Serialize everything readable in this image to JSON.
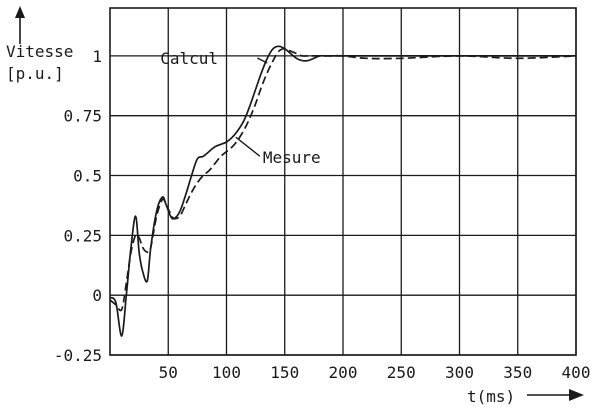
{
  "chart_data": {
    "type": "line",
    "ylabel_line1": "Vitesse",
    "ylabel_line2": "[p.u.]",
    "xlabel": "t(ms)",
    "xlim": [
      0,
      400
    ],
    "ylim": [
      -0.25,
      1.2
    ],
    "x_ticks": [
      50,
      100,
      150,
      200,
      250,
      300,
      350,
      400
    ],
    "x_tick_labels": [
      "50",
      "100",
      "150",
      "200",
      "250",
      "300",
      "350",
      "400"
    ],
    "y_ticks": [
      -0.25,
      0,
      0.25,
      0.5,
      0.75,
      1
    ],
    "y_tick_labels": [
      "-0.25",
      "0",
      "0.25",
      "0.5",
      "0.75",
      "1"
    ],
    "grid": true,
    "series": [
      {
        "name": "Calcul",
        "style": "solid",
        "x": [
          0,
          5,
          10,
          14,
          18,
          22,
          25,
          28,
          32,
          35,
          40,
          45,
          48,
          52,
          55,
          60,
          65,
          70,
          75,
          80,
          85,
          90,
          95,
          100,
          105,
          110,
          115,
          120,
          125,
          130,
          135,
          140,
          145,
          150,
          155,
          160,
          165,
          170,
          175,
          180,
          185,
          190,
          200,
          220,
          250,
          300,
          350,
          400
        ],
        "y": [
          -0.01,
          -0.03,
          -0.17,
          0.0,
          0.2,
          0.33,
          0.18,
          0.1,
          0.06,
          0.2,
          0.35,
          0.41,
          0.38,
          0.33,
          0.32,
          0.35,
          0.42,
          0.5,
          0.57,
          0.58,
          0.6,
          0.62,
          0.63,
          0.64,
          0.66,
          0.69,
          0.73,
          0.79,
          0.86,
          0.93,
          0.99,
          1.03,
          1.04,
          1.03,
          1.01,
          0.99,
          0.98,
          0.98,
          0.99,
          1.0,
          1.0,
          1.0,
          1.0,
          1.0,
          1.0,
          1.0,
          1.0,
          1.0
        ]
      },
      {
        "name": "Mesure",
        "style": "dashed",
        "x": [
          0,
          5,
          10,
          14,
          18,
          22,
          25,
          28,
          32,
          35,
          40,
          45,
          48,
          52,
          55,
          60,
          65,
          70,
          75,
          80,
          85,
          90,
          95,
          100,
          105,
          110,
          115,
          120,
          125,
          130,
          135,
          140,
          145,
          150,
          155,
          160,
          165,
          170,
          175,
          180,
          185,
          190,
          200,
          220,
          250,
          300,
          350,
          400
        ],
        "y": [
          -0.02,
          -0.04,
          -0.06,
          0.05,
          0.18,
          0.25,
          0.24,
          0.2,
          0.18,
          0.2,
          0.33,
          0.4,
          0.38,
          0.34,
          0.32,
          0.33,
          0.38,
          0.43,
          0.47,
          0.5,
          0.52,
          0.55,
          0.58,
          0.6,
          0.62,
          0.65,
          0.69,
          0.74,
          0.8,
          0.87,
          0.93,
          0.98,
          1.02,
          1.03,
          1.02,
          1.01,
          1.0,
          1.0,
          1.0,
          1.0,
          1.0,
          1.0,
          1.0,
          0.99,
          0.99,
          1.0,
          0.99,
          1.0
        ]
      }
    ],
    "annotations": [
      {
        "text": "Calcul",
        "target_series": "Calcul",
        "at_x": 135,
        "at_y": 0.97
      },
      {
        "text": "Mesure",
        "target_series": "Mesure",
        "at_x": 108,
        "at_y": 0.66
      }
    ]
  }
}
